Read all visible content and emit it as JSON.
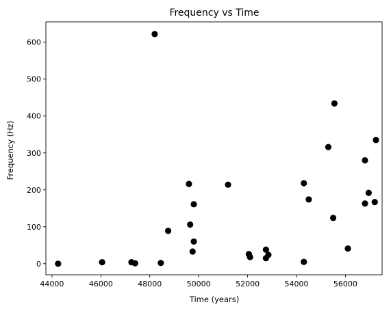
{
  "chart_data": {
    "type": "scatter",
    "title": "Frequency vs Time",
    "xlabel": "Time (years)",
    "ylabel": "Frequency (Hz)",
    "xlim": [
      43750,
      57500
    ],
    "ylim": [
      -30,
      655
    ],
    "xticks": [
      44000,
      46000,
      48000,
      50000,
      52000,
      54000,
      56000
    ],
    "yticks": [
      0,
      100,
      200,
      300,
      400,
      500,
      600
    ],
    "grid": false,
    "marker_color": "#000000",
    "series": [
      {
        "points": [
          [
            44250,
            0
          ],
          [
            46050,
            4
          ],
          [
            47250,
            4
          ],
          [
            47400,
            1
          ],
          [
            48200,
            622
          ],
          [
            48450,
            2
          ],
          [
            48750,
            89
          ],
          [
            49600,
            216
          ],
          [
            49650,
            106
          ],
          [
            49750,
            33
          ],
          [
            49800,
            60
          ],
          [
            49800,
            161
          ],
          [
            51200,
            214
          ],
          [
            52050,
            26
          ],
          [
            52100,
            18
          ],
          [
            52750,
            38
          ],
          [
            52750,
            15
          ],
          [
            52850,
            24
          ],
          [
            54300,
            218
          ],
          [
            54300,
            5
          ],
          [
            54500,
            174
          ],
          [
            55300,
            316
          ],
          [
            55500,
            124
          ],
          [
            55550,
            434
          ],
          [
            56100,
            41
          ],
          [
            56800,
            163
          ],
          [
            56800,
            280
          ],
          [
            56950,
            192
          ],
          [
            57200,
            167
          ],
          [
            57250,
            335
          ]
        ]
      }
    ]
  }
}
